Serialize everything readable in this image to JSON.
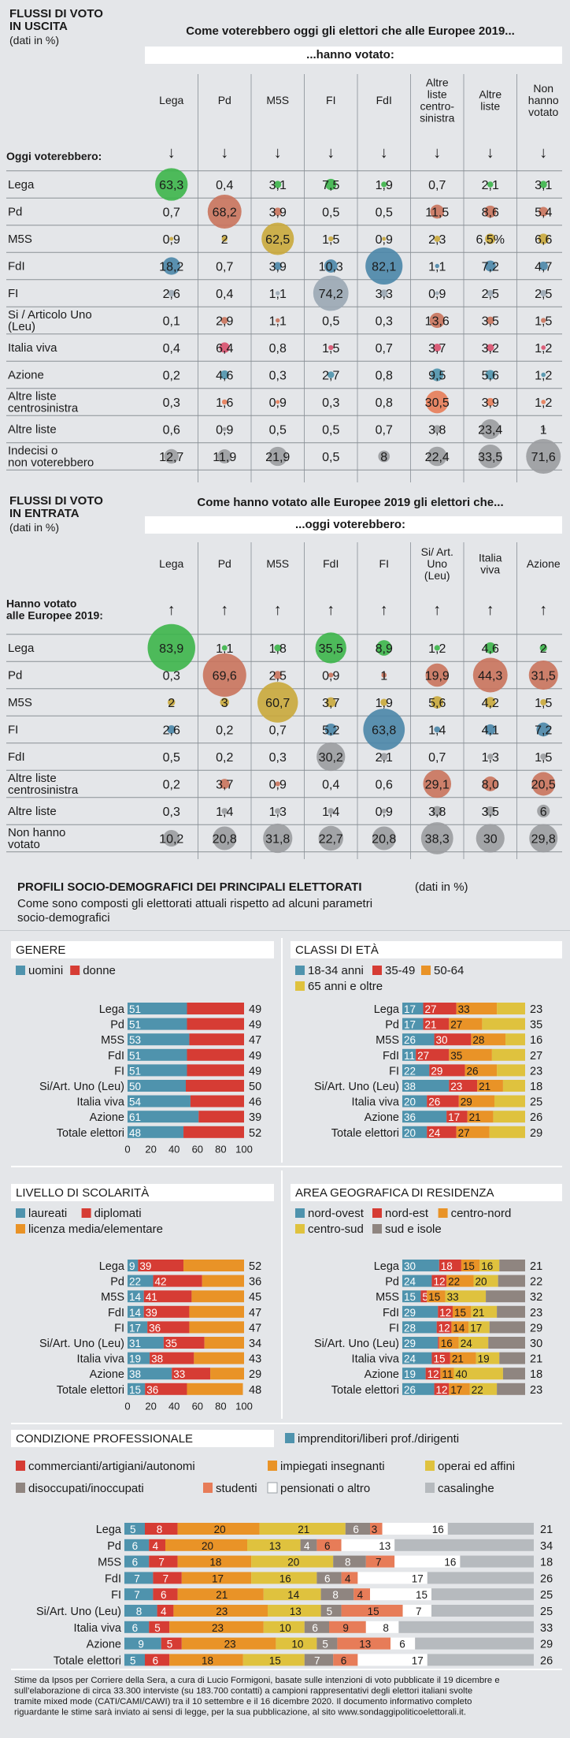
{
  "colors": {
    "background": "#e4e6e9",
    "lega": "#3cb54a",
    "pd": "#c9735c",
    "m5s": "#c9a93b",
    "fdi": "#4a86a8",
    "fi": "#9aa7b4",
    "grey_bubble": "#9a9ca0",
    "pink": "#d9506e",
    "teal": "#4f93ad",
    "red": "#d63c34",
    "orange": "#e99327",
    "yellow": "#dfc23e",
    "dark_grey": "#8f8580",
    "salmon": "#e77c58",
    "white": "#ffffff",
    "light_grey": "#b6babe"
  },
  "uscita": {
    "title": "FLUSSI DI VOTO\nIN USCITA",
    "unit": "(dati in %)",
    "header": "Come voterebbero oggi gli elettori che alle Europee 2019...",
    "subheader": "...hanno votato:",
    "row_label_header": "Oggi voterebbero:",
    "arrow": "↓",
    "columns": [
      "Lega",
      "Pd",
      "M5S",
      "FI",
      "FdI",
      "Altre\nliste\ncentro-\nsinistra",
      "Altre\nliste",
      "Non\nhanno\nvotato"
    ],
    "rows": [
      {
        "label": "Lega",
        "values": [
          "63,3",
          "0,4",
          "3,1",
          "7,5",
          "1,9",
          "0,7",
          "2,1",
          "3,1"
        ]
      },
      {
        "label": "Pd",
        "values": [
          "0,7",
          "68,2",
          "3,9",
          "0,5",
          "0,5",
          "11,5",
          "8,6",
          "5,4"
        ]
      },
      {
        "label": "M5S",
        "values": [
          "0,9",
          "2",
          "62,5",
          "1,5",
          "0,9",
          "2,3",
          "6,5%",
          "6,6"
        ]
      },
      {
        "label": "FdI",
        "values": [
          "18,2",
          "0,7",
          "3,9",
          "10,3",
          "82,1",
          "1,1",
          "7,2",
          "4,7"
        ]
      },
      {
        "label": "FI",
        "values": [
          "2,6",
          "0,4",
          "1,1",
          "74,2",
          "3,3",
          "0,9",
          "2,5",
          "2,5"
        ]
      },
      {
        "label": "Si / Articolo Uno\n(Leu)",
        "values": [
          "0,1",
          "2,9",
          "1,1",
          "0,5",
          "0,3",
          "13,6",
          "3,5",
          "1,5"
        ]
      },
      {
        "label": "Italia viva",
        "values": [
          "0,4",
          "6,4",
          "0,8",
          "1,5",
          "0,7",
          "3,7",
          "3,2",
          "1,2"
        ]
      },
      {
        "label": "Azione",
        "values": [
          "0,2",
          "4,6",
          "0,3",
          "2,7",
          "0,8",
          "9,5",
          "5,6",
          "1,2"
        ]
      },
      {
        "label": "Altre liste\ncentrosinistra",
        "values": [
          "0,3",
          "1,6",
          "0,9",
          "0,3",
          "0,8",
          "30,5",
          "3,9",
          "1,2"
        ]
      },
      {
        "label": "Altre liste",
        "values": [
          "0,6",
          "0,9",
          "0,5",
          "0,5",
          "0,7",
          "3,8",
          "23,4",
          "1"
        ]
      },
      {
        "label": "Indecisi o\nnon voterebbero",
        "values": [
          "12,7",
          "11,9",
          "21,9",
          "0,5",
          "8",
          "22,4",
          "33,5",
          "71,6"
        ]
      }
    ]
  },
  "entrata": {
    "title": "FLUSSI DI VOTO\nIN ENTRATA",
    "unit": "(dati in %)",
    "header": "Come hanno votato alle Europee 2019 gli elettori che...",
    "subheader": "...oggi voterebbero:",
    "row_label_header": "Hanno votato\nalle Europee 2019:",
    "arrow": "↑",
    "columns": [
      "Lega",
      "Pd",
      "M5S",
      "FdI",
      "FI",
      "Si/ Art.\nUno\n(Leu)",
      "Italia\nviva",
      "Azione"
    ],
    "rows": [
      {
        "label": "Lega",
        "values": [
          "83,9",
          "1,1",
          "1,8",
          "35,5",
          "8,9",
          "1,2",
          "4,6",
          "2"
        ]
      },
      {
        "label": "Pd",
        "values": [
          "0,3",
          "69,6",
          "2,5",
          "0,9",
          "1",
          "19,9",
          "44,3",
          "31,5"
        ]
      },
      {
        "label": "M5S",
        "values": [
          "2",
          "3",
          "60,7",
          "3,7",
          "1,9",
          "5,6",
          "4,2",
          "1,5"
        ]
      },
      {
        "label": "FI",
        "values": [
          "2,6",
          "0,2",
          "0,7",
          "5,2",
          "63,8",
          "1,4",
          "4,1",
          "7,2"
        ]
      },
      {
        "label": "FdI",
        "values": [
          "0,5",
          "0,2",
          "0,3",
          "30,2",
          "2,1",
          "0,7",
          "1,3",
          "1,5"
        ]
      },
      {
        "label": "Altre liste\ncentrosinistra",
        "values": [
          "0,2",
          "3,7",
          "0,9",
          "0,4",
          "0,6",
          "29,1",
          "8,0",
          "20,5"
        ]
      },
      {
        "label": "Altre liste",
        "values": [
          "0,3",
          "1,4",
          "1,3",
          "1,4",
          "0,9",
          "3,8",
          "3,5",
          "6"
        ]
      },
      {
        "label": "Non hanno\nvotato",
        "values": [
          "10,2",
          "20,8",
          "31,8",
          "22,7",
          "20,8",
          "38,3",
          "30",
          "29,8"
        ]
      }
    ]
  },
  "profili": {
    "title": "PROFILI SOCIO-DEMOGRAFICI DEI PRINCIPALI ELETTORATI",
    "title_unit": "(dati in %)",
    "subtitle": "Come sono composti gli elettorati attuali rispetto ad alcuni parametri\nsocio-demografici"
  },
  "chart_data": [
    {
      "type": "bar",
      "id": "genere",
      "title": "GENERE",
      "categories": [
        "Lega",
        "Pd",
        "M5S",
        "FdI",
        "FI",
        "Si/Art. Uno (Leu)",
        "Italia viva",
        "Azione",
        "Totale elettori"
      ],
      "series": [
        {
          "name": "uomini",
          "values": [
            51,
            51,
            53,
            51,
            51,
            50,
            54,
            61,
            48
          ]
        },
        {
          "name": "donne",
          "values": [
            49,
            49,
            47,
            49,
            49,
            50,
            46,
            39,
            52
          ]
        }
      ],
      "xticks": [
        "0",
        "20",
        "40",
        "60",
        "80",
        "100"
      ],
      "xlim": [
        0,
        100
      ]
    },
    {
      "type": "bar",
      "id": "eta",
      "title": "CLASSI DI ETÀ",
      "categories": [
        "Lega",
        "Pd",
        "M5S",
        "FdI",
        "FI",
        "Si/Art. Uno (Leu)",
        "Italia viva",
        "Azione",
        "Totale elettori"
      ],
      "series": [
        {
          "name": "18-34 anni",
          "values": [
            17,
            17,
            26,
            11,
            22,
            38,
            20,
            36,
            20
          ]
        },
        {
          "name": "35-49",
          "values": [
            27,
            21,
            30,
            27,
            29,
            23,
            26,
            17,
            24
          ]
        },
        {
          "name": "50-64",
          "values": [
            33,
            27,
            28,
            35,
            26,
            21,
            29,
            21,
            27
          ]
        },
        {
          "name": "65 anni e oltre",
          "values": [
            23,
            35,
            16,
            27,
            23,
            18,
            25,
            26,
            29
          ]
        }
      ],
      "xlim": [
        0,
        100
      ]
    },
    {
      "type": "bar",
      "id": "scolarita",
      "title": "LIVELLO DI SCOLARITÀ",
      "categories": [
        "Lega",
        "Pd",
        "M5S",
        "FdI",
        "FI",
        "Si/Art. Uno (Leu)",
        "Italia viva",
        "Azione",
        "Totale elettori"
      ],
      "series": [
        {
          "name": "laureati",
          "values": [
            9,
            22,
            14,
            14,
            17,
            31,
            19,
            38,
            15
          ]
        },
        {
          "name": "diplomati",
          "values": [
            39,
            42,
            41,
            39,
            36,
            35,
            38,
            33,
            36
          ]
        },
        {
          "name": "licenza media/elementare",
          "values": [
            52,
            36,
            45,
            47,
            47,
            34,
            43,
            29,
            48
          ]
        }
      ],
      "xticks": [
        "0",
        "20",
        "40",
        "60",
        "80",
        "100"
      ],
      "xlim": [
        0,
        100
      ]
    },
    {
      "type": "bar",
      "id": "area",
      "title": "AREA GEOGRAFICA DI RESIDENZA",
      "categories": [
        "Lega",
        "Pd",
        "M5S",
        "FdI",
        "FI",
        "Si/Art. Uno (Leu)",
        "Italia viva",
        "Azione",
        "Totale elettori"
      ],
      "series": [
        {
          "name": "nord-ovest",
          "values": [
            30,
            24,
            15,
            29,
            28,
            29,
            24,
            19,
            26
          ]
        },
        {
          "name": "nord-est",
          "values": [
            18,
            12,
            5,
            12,
            12,
            1,
            15,
            12,
            12
          ]
        },
        {
          "name": "centro-nord",
          "values": [
            15,
            22,
            15,
            15,
            14,
            16,
            21,
            11,
            17
          ]
        },
        {
          "name": "centro-sud",
          "values": [
            16,
            20,
            33,
            21,
            17,
            24,
            19,
            40,
            22
          ]
        },
        {
          "name": "sud e isole",
          "values": [
            21,
            22,
            32,
            23,
            29,
            30,
            21,
            18,
            23
          ]
        }
      ],
      "xlim": [
        0,
        100
      ]
    },
    {
      "type": "bar",
      "id": "professione",
      "title": "CONDIZIONE PROFESSIONALE",
      "categories": [
        "Lega",
        "Pd",
        "M5S",
        "FdI",
        "FI",
        "Si/Art. Uno (Leu)",
        "Italia viva",
        "Azione",
        "Totale elettori"
      ],
      "series": [
        {
          "name": "imprenditori/liberi prof./dirigenti",
          "values": [
            5,
            6,
            6,
            7,
            7,
            8,
            6,
            9,
            5
          ]
        },
        {
          "name": "commercianti/artigiani/autonomi",
          "values": [
            8,
            4,
            7,
            7,
            6,
            4,
            5,
            5,
            6
          ]
        },
        {
          "name": "impiegati insegnanti",
          "values": [
            20,
            20,
            18,
            17,
            21,
            23,
            23,
            23,
            18
          ]
        },
        {
          "name": "operai ed affini",
          "values": [
            21,
            13,
            20,
            16,
            14,
            13,
            10,
            10,
            15
          ]
        },
        {
          "name": "disoccupati/inoccupati",
          "values": [
            6,
            4,
            8,
            6,
            8,
            5,
            6,
            5,
            7
          ]
        },
        {
          "name": "studenti",
          "values": [
            3,
            6,
            7,
            4,
            4,
            15,
            9,
            13,
            6
          ]
        },
        {
          "name": "pensionati o altro",
          "values": [
            16,
            13,
            16,
            17,
            15,
            7,
            8,
            6,
            17
          ]
        },
        {
          "name": "casalinghe",
          "values": [
            21,
            34,
            18,
            26,
            25,
            25,
            33,
            29,
            26
          ]
        }
      ],
      "xlim": [
        0,
        100
      ]
    }
  ],
  "footer": "Stime da Ipsos per Corriere della Sera, a cura di Lucio Formigoni, basate sulle intenzioni di voto pubblicate il 19 dicembre e\nsull’elaborazione di circa 33.300 interviste (su 183.700 contatti) a campioni rappresentativi degli elettori italiani svolte\ntramite mixed mode (CATI/CAMI/CAWI) tra il 10 settembre e il 16 dicembre 2020. Il documento informativo completo\nriguardante le stime sarà inviato ai sensi di legge, per la sua pubblicazione, al sito www.sondaggipoliticoelettorali.it."
}
